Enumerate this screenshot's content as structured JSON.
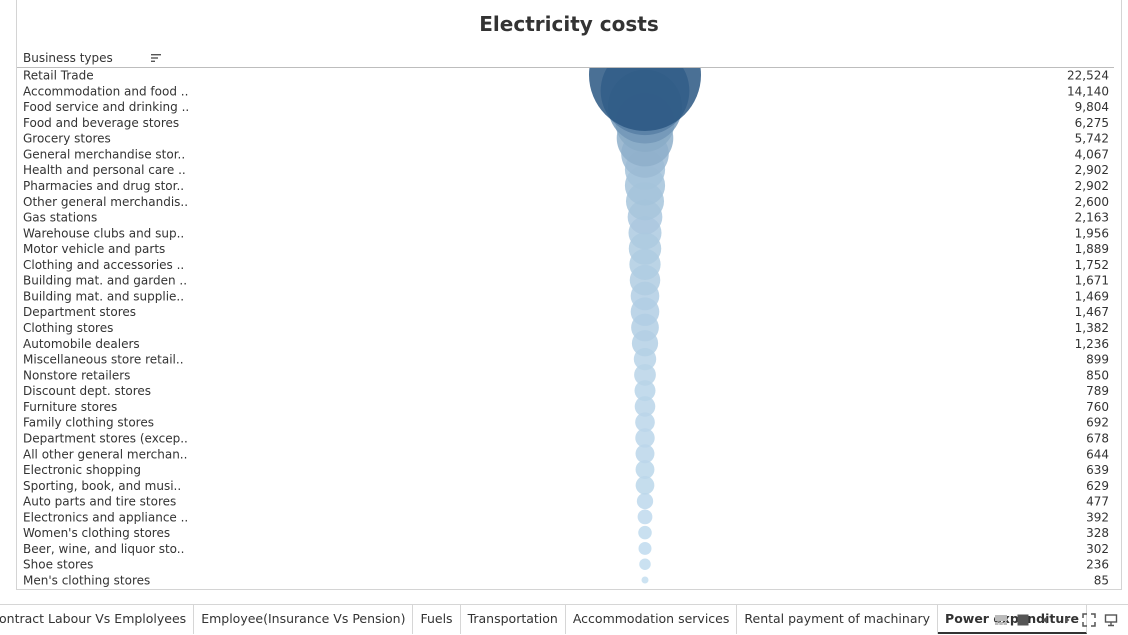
{
  "chart_data": {
    "type": "bubble",
    "title": "Electricity costs",
    "row_header": "Business types",
    "categories": [
      "Retail Trade",
      "Accommodation and food ..",
      "Food service and drinking ..",
      "Food and beverage stores",
      "Grocery stores",
      "General merchandise stor..",
      "Health and personal care ..",
      "Pharmacies and drug stor..",
      "Other general merchandis..",
      "Gas stations",
      "Warehouse clubs and sup..",
      "Motor vehicle and parts",
      "Clothing and accessories ..",
      "Building mat. and garden ..",
      "Building mat. and supplie..",
      "Department stores",
      "Clothing stores",
      "Automobile dealers",
      "Miscellaneous store retail..",
      "Nonstore retailers",
      "Discount dept. stores",
      "Furniture stores",
      "Family clothing stores",
      "Department stores (excep..",
      "All other general merchan..",
      "Electronic shopping",
      "Sporting, book, and  musi..",
      "Auto parts and tire stores",
      "Electronics and appliance ..",
      "Women's clothing stores",
      "Beer, wine, and liquor sto..",
      "Shoe stores",
      "Men's clothing stores"
    ],
    "values": [
      22524,
      14140,
      9804,
      6275,
      5742,
      4067,
      2902,
      2902,
      2600,
      2163,
      1956,
      1889,
      1752,
      1671,
      1469,
      1467,
      1382,
      1236,
      899,
      850,
      789,
      760,
      692,
      678,
      644,
      639,
      629,
      477,
      392,
      328,
      302,
      236,
      85
    ],
    "value_labels": [
      "22,524",
      "14,140",
      "9,804",
      "6,275",
      "5,742",
      "4,067",
      "2,902",
      "2,902",
      "2,600",
      "2,163",
      "1,956",
      "1,889",
      "1,752",
      "1,671",
      "1,469",
      "1,467",
      "1,382",
      "1,236",
      "899",
      "850",
      "789",
      "760",
      "692",
      "678",
      "644",
      "639",
      "629",
      "477",
      "392",
      "328",
      "302",
      "236",
      "85"
    ],
    "color_scale": [
      "#c6e0f2",
      "#2a5783"
    ],
    "sorted": "descending"
  },
  "tabs": [
    {
      "label": "ontract Labour Vs Emplolyees",
      "active": false
    },
    {
      "label": "Employee(Insurance Vs Pension)",
      "active": false
    },
    {
      "label": "Fuels",
      "active": false
    },
    {
      "label": "Transportation",
      "active": false
    },
    {
      "label": "Accommodation services",
      "active": false
    },
    {
      "label": "Rental payment of machinary",
      "active": false
    },
    {
      "label": "Power expenditure",
      "active": true
    }
  ],
  "controls": [
    "grid-view-icon",
    "filmstrip-icon",
    "prev-sheet-icon",
    "next-sheet-icon",
    "fullscreen-icon",
    "presentation-icon"
  ]
}
